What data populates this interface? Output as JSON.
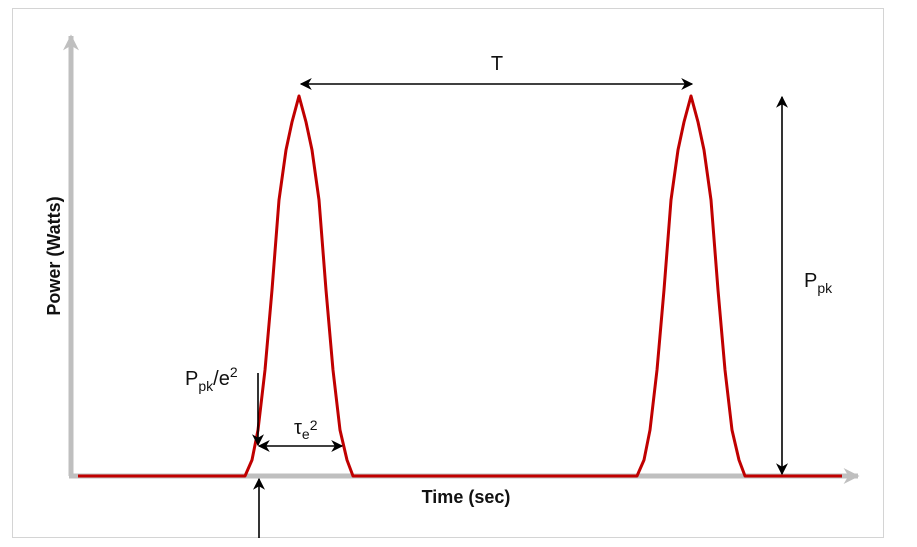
{
  "diagram": {
    "x_axis_label": "Time (sec)",
    "y_axis_label": "Power (Watts)",
    "period_label": "T",
    "peak_label": {
      "main": "P",
      "sub": "pk"
    },
    "threshold_label": {
      "main": "P",
      "sub": "pk",
      "rest": "/e",
      "sup": "2"
    },
    "width_label": {
      "main": "τ",
      "sub": "e",
      "sup": "2"
    },
    "colors": {
      "pulse": "#c00000",
      "axis": "#bfbfbf",
      "arrow": "#000000",
      "frame": "#d4d4d4"
    }
  }
}
